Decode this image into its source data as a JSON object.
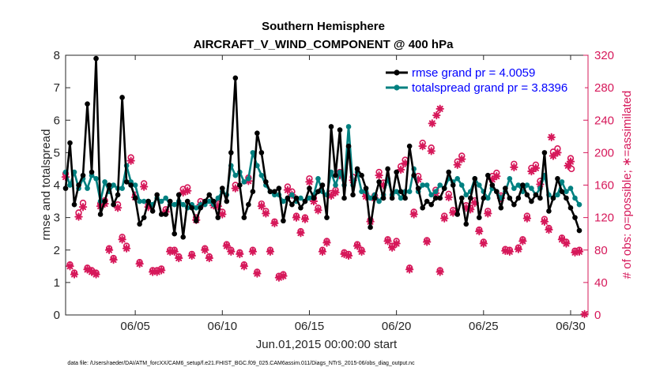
{
  "chart_data": {
    "type": "line",
    "title": "Southern Hemisphere",
    "subtitle": "AIRCRAFT_V_WIND_COMPONENT @ 400 hPa",
    "xlabel": "Jun.01,2015 00:00:00 start",
    "ylabel": "rmse and totalspread",
    "y2label": "# of obs: o=possible; ∗=assimilated",
    "xlim": [
      1.0,
      31.0
    ],
    "ylim": [
      0,
      8
    ],
    "y2lim": [
      0,
      320
    ],
    "x_ticks": [
      5,
      10,
      15,
      20,
      25,
      30
    ],
    "x_tick_labels": [
      "06/05",
      "06/10",
      "06/15",
      "06/20",
      "06/25",
      "06/30"
    ],
    "y_ticks": [
      0,
      1,
      2,
      3,
      4,
      5,
      6,
      7,
      8
    ],
    "y_tick_labels": [
      "0",
      "1",
      "2",
      "3",
      "4",
      "5",
      "6",
      "7",
      "8"
    ],
    "y2_ticks": [
      0,
      40,
      80,
      120,
      160,
      200,
      240,
      280,
      320
    ],
    "y2_tick_labels": [
      "0",
      "40",
      "80",
      "120",
      "160",
      "200",
      "240",
      "280",
      "320"
    ],
    "legend_position": "top-right",
    "series": [
      {
        "name": "rmse grand pr = 4.0059",
        "color": "#000000",
        "marker": "circle",
        "axis": "left",
        "x_start": 1.0,
        "x_step": 0.25,
        "values": [
          3.9,
          5.3,
          3.4,
          4.0,
          4.3,
          6.5,
          4.4,
          7.9,
          3.1,
          3.5,
          4.0,
          3.4,
          3.7,
          6.7,
          4.1,
          4.0,
          3.6,
          2.8,
          3.0,
          3.5,
          3.2,
          3.7,
          3.1,
          3.1,
          3.5,
          2.5,
          3.7,
          2.4,
          3.5,
          3.3,
          2.9,
          3.3,
          3.5,
          3.7,
          3.5,
          3.0,
          3.9,
          3.5,
          5.0,
          7.3,
          4.0,
          3.0,
          3.4,
          3.8,
          5.6,
          5.0,
          4.1,
          3.8,
          3.8,
          3.9,
          2.9,
          3.6,
          3.4,
          3.6,
          3.3,
          3.5,
          3.9,
          3.6,
          3.8,
          4.0,
          3.0,
          5.8,
          4.3,
          5.7,
          3.6,
          5.2,
          3.7,
          4.5,
          4.3,
          3.9,
          2.7,
          3.6,
          4.1,
          3.6,
          4.5,
          3.6,
          4.4,
          3.8,
          3.6,
          5.2,
          4.3,
          3.9,
          3.3,
          3.5,
          3.4,
          3.6,
          3.6,
          3.9,
          4.4,
          4.0,
          3.1,
          3.6,
          2.8,
          3.6,
          4.2,
          3.0,
          3.6,
          4.3,
          4.0,
          3.8,
          3.3,
          3.9,
          3.6,
          3.4,
          3.6,
          4.0,
          3.7,
          3.5,
          3.7,
          3.6,
          5.0,
          3.2,
          3.6,
          4.2,
          3.8,
          3.6,
          3.3,
          3.0,
          2.6
        ]
      },
      {
        "name": "totalspread grand pr = 3.8396",
        "color": "#008080",
        "marker": "circle",
        "axis": "left",
        "x_start": 1.0,
        "x_step": 0.25,
        "values": [
          4.4,
          4.0,
          4.4,
          3.9,
          4.2,
          3.9,
          4.3,
          4.2,
          3.5,
          4.1,
          3.8,
          4.0,
          3.9,
          3.9,
          4.6,
          4.1,
          4.0,
          3.5,
          3.5,
          3.5,
          3.4,
          3.6,
          3.5,
          3.6,
          3.4,
          3.4,
          3.5,
          3.4,
          3.3,
          3.4,
          3.3,
          3.4,
          3.4,
          3.5,
          3.4,
          3.6,
          3.8,
          3.7,
          4.6,
          4.3,
          4.4,
          4.1,
          4.2,
          5.0,
          4.6,
          4.3,
          4.0,
          3.8,
          3.7,
          3.7,
          3.5,
          3.6,
          3.7,
          3.5,
          3.6,
          3.5,
          3.6,
          3.7,
          4.2,
          3.8,
          3.7,
          4.4,
          4.0,
          4.4,
          4.0,
          5.8,
          4.0,
          4.4,
          3.8,
          3.8,
          3.6,
          3.7,
          3.5,
          3.7,
          4.2,
          3.7,
          3.8,
          3.6,
          3.8,
          3.8,
          4.5,
          3.8,
          4.0,
          4.0,
          3.7,
          3.8,
          4.0,
          3.9,
          4.2,
          4.1,
          4.2,
          4.0,
          3.7,
          3.8,
          4.2,
          4.0,
          3.8,
          3.6,
          3.9,
          3.8,
          3.6,
          3.8,
          4.2,
          3.9,
          4.0,
          3.8,
          4.0,
          3.9,
          3.7,
          3.9,
          4.3,
          3.7,
          3.6,
          3.7,
          4.1,
          3.8,
          3.9,
          3.6,
          3.4
        ]
      }
    ],
    "obs_series": [
      {
        "name": "possible (o)",
        "color": "#d6185a",
        "marker": "circle-open",
        "axis": "right",
        "x_start": 1.0,
        "x_step": 0.25,
        "values": [
          174,
          62,
          52,
          126,
          138,
          58,
          55,
          52,
          137,
          141,
          82,
          70,
          136,
          96,
          85,
          194,
          148,
          65,
          162,
          136,
          55,
          55,
          57,
          130,
          80,
          80,
          72,
          155,
          157,
          75,
          120,
          140,
          82,
          72,
          138,
          137,
          127,
          87,
          80,
          160,
          77,
          62,
          169,
          80,
          53,
          137,
          128,
          80,
          115,
          48,
          50,
          158,
          152,
          122,
          103,
          120,
          168,
          144,
          132,
          80,
          91,
          150,
          154,
          176,
          77,
          75,
          170,
          87,
          80,
          149,
          117,
          147,
          176,
          163,
          93,
          85,
          91,
          183,
          191,
          58,
          127,
          171,
          212,
          92,
          206,
          154,
          55,
          122,
          149,
          129,
          189,
          196,
          135,
          132,
          141,
          105,
          90,
          128,
          171,
          175,
          147,
          81,
          80,
          186,
          83,
          93,
          122,
          181,
          185,
          165,
          118,
          107,
          201,
          205,
          95,
          90,
          193,
          79,
          80
        ]
      },
      {
        "name": "assimilated (*)",
        "color": "#d6185a",
        "marker": "star",
        "axis": "right",
        "x_start": 1.0,
        "x_step": 0.25,
        "values": [
          170,
          60,
          50,
          121,
          133,
          56,
          53,
          50,
          134,
          137,
          80,
          68,
          132,
          93,
          82,
          190,
          145,
          63,
          158,
          133,
          53,
          53,
          55,
          127,
          78,
          78,
          70,
          151,
          153,
          73,
          117,
          136,
          80,
          70,
          135,
          134,
          124,
          85,
          78,
          156,
          75,
          60,
          165,
          78,
          51,
          134,
          125,
          78,
          113,
          46,
          48,
          154,
          148,
          120,
          101,
          118,
          164,
          140,
          129,
          78,
          89,
          147,
          151,
          172,
          75,
          73,
          166,
          85,
          78,
          146,
          115,
          144,
          172,
          160,
          91,
          83,
          88,
          179,
          187,
          56,
          124,
          167,
          208,
          90,
          202,
          150,
          53,
          119,
          145,
          126,
          185,
          192,
          132,
          130,
          138,
          103,
          88,
          125,
          167,
          171,
          144,
          79,
          78,
          182,
          81,
          91,
          119,
          177,
          181,
          161,
          115,
          105,
          196,
          200,
          93,
          88,
          189,
          77,
          78
        ]
      }
    ],
    "extra_points": [
      {
        "x": 22.05,
        "y2": 236,
        "marker": "star"
      },
      {
        "x": 22.3,
        "y2": 246,
        "marker": "star"
      },
      {
        "x": 22.5,
        "y2": 254,
        "marker": "star"
      },
      {
        "x": 28.9,
        "y2": 219,
        "marker": "star"
      },
      {
        "x": 29.85,
        "y2": 184,
        "marker": "star"
      },
      {
        "x": 30.05,
        "y2": 180,
        "marker": "circle-open"
      },
      {
        "x": 30.8,
        "y2": 1,
        "marker": "star"
      }
    ]
  },
  "footnote": "data file: /Users/raeder/DAI/ATM_forcXX/CAM6_setup/f.e21.FHIST_BGC.f09_025.CAM6assim.011/Diags_NTrS_2015-06/obs_diag_output.nc"
}
